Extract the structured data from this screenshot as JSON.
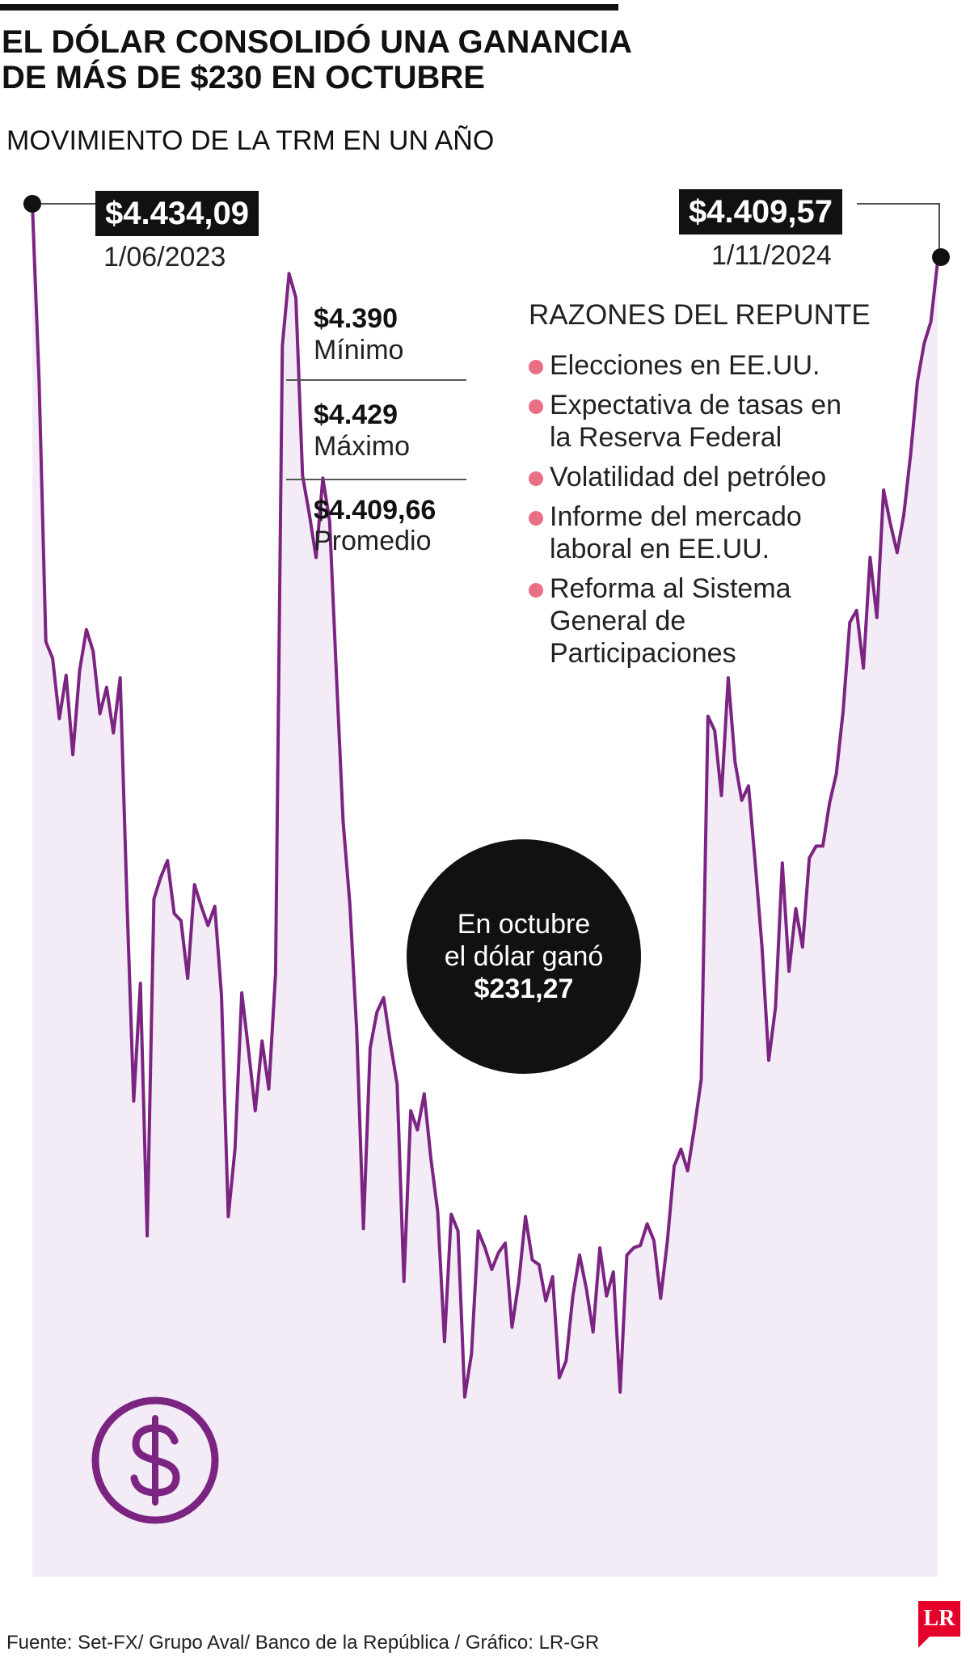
{
  "header": {
    "title_line1": "EL DÓLAR CONSOLIDÓ UNA GANANCIA",
    "title_line2": "DE MÁS DE $230 EN OCTUBRE",
    "subtitle": "MOVIMIENTO DE LA TRM EN UN AÑO"
  },
  "start_point": {
    "value": "$4.434,09",
    "date": "1/06/2023"
  },
  "end_point": {
    "value": "$4.409,57",
    "date": "1/11/2024"
  },
  "stats": [
    {
      "value": "$4.390",
      "label": "Mínimo"
    },
    {
      "value": "$4.429",
      "label": "Máximo"
    },
    {
      "value": "$4.409,66",
      "label": "Promedio"
    }
  ],
  "reasons": {
    "title": "RAZONES DEL REPUNTE",
    "items": [
      "Elecciones en EE.UU.",
      "Expectativa de tasas en la Reserva Federal",
      "Volatilidad del petróleo",
      "Informe del mercado laboral en EE.UU.",
      "Reforma al Sistema General de Participaciones"
    ]
  },
  "callout": {
    "line1": "En octubre",
    "line2": "el dólar ganó",
    "amount": "$231,27"
  },
  "icons": {
    "dollar": "dollar-icon",
    "reason_bullet": "bullet-dot"
  },
  "colors": {
    "line": "#7b2482",
    "area": "#f3ecf6",
    "bullet": "#ea6f86",
    "box": "#111111",
    "logo": "#e4002b"
  },
  "source": "Fuente: Set-FX/ Grupo Aval/ Banco de la República / Gráfico: LR-GR",
  "logo_text": "LR",
  "chart_data": {
    "type": "area",
    "title": "MOVIMIENTO DE LA TRM EN UN AÑO",
    "x_start": "1/06/2023",
    "x_end": "1/11/2024",
    "yaxis_visible": false,
    "grid": false,
    "annotated_points": [
      {
        "date": "1/06/2023",
        "value": 4434.09
      },
      {
        "date": "1/11/2024",
        "value": 4409.57
      }
    ],
    "values": [
      4434,
      4360,
      4252,
      4245,
      4220,
      4238,
      4205,
      4240,
      4257,
      4248,
      4222,
      4233,
      4214,
      4237,
      4145,
      4061,
      4110,
      4005,
      4145,
      4154,
      4161,
      4139,
      4136,
      4112,
      4151,
      4142,
      4134,
      4142,
      4105,
      4013,
      4041,
      4106,
      4082,
      4057,
      4086,
      4066,
      4114,
      4375,
      4405,
      4395,
      4321,
      4305,
      4287,
      4320,
      4302,
      4239,
      4177,
      4143,
      4091,
      4008,
      4083,
      4098,
      4104,
      4085,
      4068,
      3986,
      4057,
      4049,
      4064,
      4037,
      4015,
      3961,
      4014,
      4007,
      3938,
      3956,
      4007,
      4000,
      3991,
      3998,
      4002,
      3967,
      3986,
      4013,
      3995,
      3993,
      3978,
      3988,
      3946,
      3953,
      3980,
      3997,
      3983,
      3965,
      4000,
      3980,
      3990,
      3940,
      3997,
      4000,
      4001,
      4010,
      4003,
      3979,
      4003,
      4034,
      4041,
      4032,
      4050,
      4070,
      4221,
      4215,
      4188,
      4237,
      4202,
      4186,
      4192,
      4160,
      4125,
      4078,
      4100,
      4160,
      4115,
      4141,
      4125,
      4162,
      4167,
      4167,
      4185,
      4197,
      4223,
      4260,
      4265,
      4241,
      4287,
      4262,
      4315,
      4301,
      4289,
      4305,
      4330,
      4360,
      4376,
      4385,
      4410
    ]
  }
}
